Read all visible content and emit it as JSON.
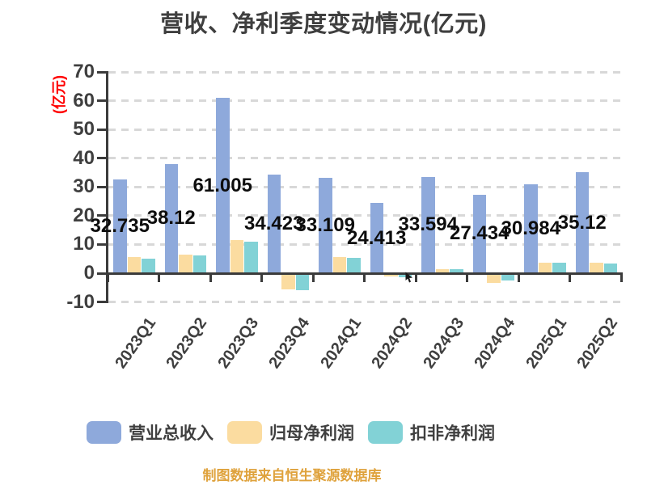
{
  "title": "营收、净利季度变动情况(亿元)",
  "caption": "制图数据来自恒生聚源数据库",
  "y_axis": {
    "unit": "(亿元)",
    "ticks": [
      70,
      60,
      50,
      40,
      30,
      20,
      10,
      0,
      -10
    ],
    "min": -10,
    "max": 70
  },
  "legend": [
    {
      "label": "营业总收入",
      "color": "#8EA9DB"
    },
    {
      "label": "归母净利润",
      "color": "#FBDCA0"
    },
    {
      "label": "扣非净利润",
      "color": "#82D2D6"
    }
  ],
  "colors": {
    "background": "#FFFFFF",
    "axis": "#3B3B3B",
    "grid": "#D8D8D8",
    "title_text": "#3F3F3F",
    "tick_text": "#3F3F3F",
    "value_label_text": "#0D0D0D",
    "y_unit_text": "#FF0000",
    "caption_text": "#DFA23C",
    "series_revenue": "#8EA9DB",
    "series_net_profit": "#FBDCA0",
    "series_non_gaap": "#82D2D6"
  },
  "chart_data": {
    "type": "bar",
    "title": "营收、净利季度变动情况(亿元)",
    "xlabel": "",
    "ylabel": "(亿元)",
    "ylim": [
      -10,
      70
    ],
    "ytick_step": 10,
    "grid": "horizontal-dashed",
    "legend_position": "bottom",
    "categories": [
      "2023Q1",
      "2023Q2",
      "2023Q3",
      "2023Q4",
      "2024Q1",
      "2024Q2",
      "2024Q3",
      "2024Q4",
      "2025Q1",
      "2025Q2"
    ],
    "series": [
      {
        "name": "营业总收入",
        "key": "revenue",
        "color": "#8EA9DB",
        "values": [
          32.735,
          38.12,
          61.005,
          34.423,
          33.109,
          24.413,
          33.594,
          27.434,
          30.984,
          35.12
        ],
        "labels": [
          "32.735",
          "38.12",
          "61.005",
          "34.423",
          "33.109",
          "24.413",
          "33.594",
          "27.434",
          "30.984",
          "35.12"
        ]
      },
      {
        "name": "归母净利润",
        "key": "net-profit",
        "color": "#FBDCA0",
        "values": [
          5.7,
          6.4,
          11.4,
          -5.6,
          5.6,
          -1.1,
          1.5,
          -3.4,
          3.7,
          3.7
        ]
      },
      {
        "name": "扣非净利润",
        "key": "non-gaap-net-profit",
        "color": "#82D2D6",
        "values": [
          5.2,
          6.1,
          11.1,
          -5.9,
          5.3,
          -1.3,
          1.4,
          -2.4,
          3.6,
          3.5
        ]
      }
    ]
  }
}
